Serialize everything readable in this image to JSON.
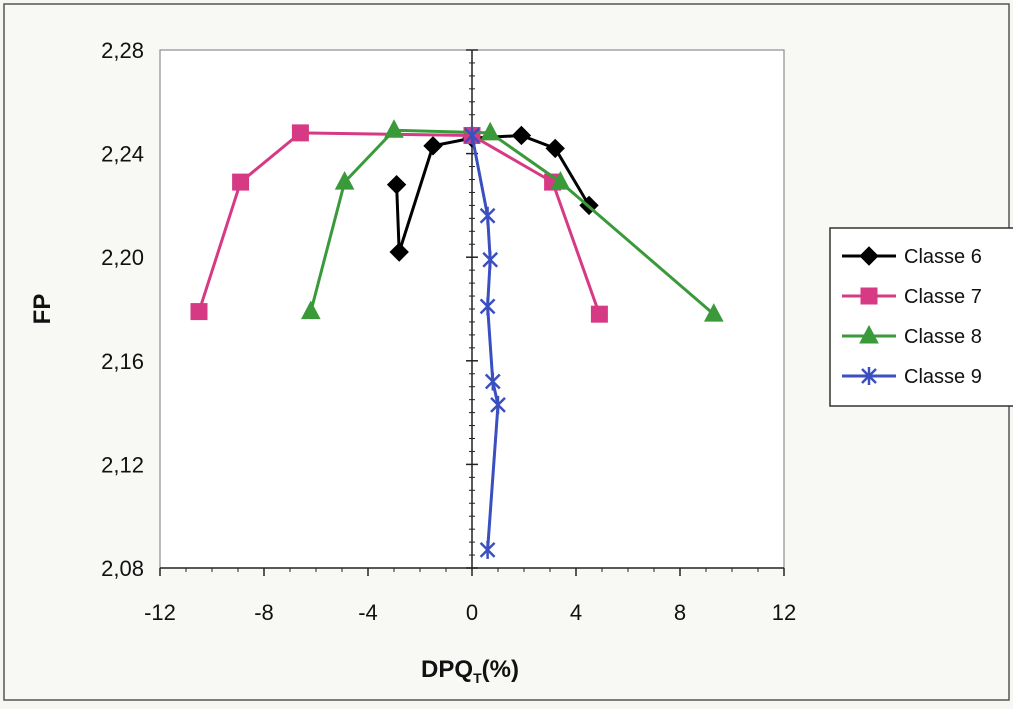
{
  "chart_data": {
    "type": "line",
    "xlabel": "DPQ",
    "xlabel_sub": "T",
    "xlabel_suffix": "(%)",
    "ylabel": "FP",
    "xlim": [
      -12,
      12
    ],
    "ylim": [
      2.08,
      2.28
    ],
    "xticks": [
      -12,
      -8,
      -4,
      0,
      4,
      8,
      12
    ],
    "xtick_labels": [
      "-12",
      "-8",
      "-4",
      "0",
      "4",
      "8",
      "12"
    ],
    "yticks": [
      2.08,
      2.12,
      2.16,
      2.2,
      2.24,
      2.28
    ],
    "ytick_labels": [
      "2,08",
      "2,12",
      "2,16",
      "2,20",
      "2,24",
      "2,28"
    ],
    "grid": false,
    "legend_position": "right",
    "series": [
      {
        "name": "Classe 6",
        "color": "#000000",
        "marker": "diamond",
        "points": [
          [
            -2.9,
            2.228
          ],
          [
            -2.8,
            2.202
          ],
          [
            -1.5,
            2.243
          ],
          [
            0,
            2.246
          ],
          [
            1.9,
            2.247
          ],
          [
            3.2,
            2.242
          ],
          [
            4.5,
            2.22
          ]
        ]
      },
      {
        "name": "Classe 7",
        "color": "#d63a84",
        "marker": "square",
        "points": [
          [
            -10.5,
            2.179
          ],
          [
            -8.9,
            2.229
          ],
          [
            -6.6,
            2.248
          ],
          [
            0,
            2.247
          ],
          [
            3.1,
            2.229
          ],
          [
            4.9,
            2.178
          ]
        ]
      },
      {
        "name": "Classe 8",
        "color": "#3a9a3a",
        "marker": "triangle",
        "points": [
          [
            -6.2,
            2.179
          ],
          [
            -4.9,
            2.229
          ],
          [
            -3.0,
            2.249
          ],
          [
            0.7,
            2.248
          ],
          [
            3.4,
            2.229
          ],
          [
            9.3,
            2.178
          ]
        ]
      },
      {
        "name": "Classe 9",
        "color": "#3a4fc0",
        "marker": "star",
        "points": [
          [
            0,
            2.247
          ],
          [
            0.6,
            2.216
          ],
          [
            0.7,
            2.199
          ],
          [
            0.6,
            2.181
          ],
          [
            0.8,
            2.152
          ],
          [
            1.0,
            2.143
          ],
          [
            0.6,
            2.087
          ]
        ]
      }
    ]
  }
}
